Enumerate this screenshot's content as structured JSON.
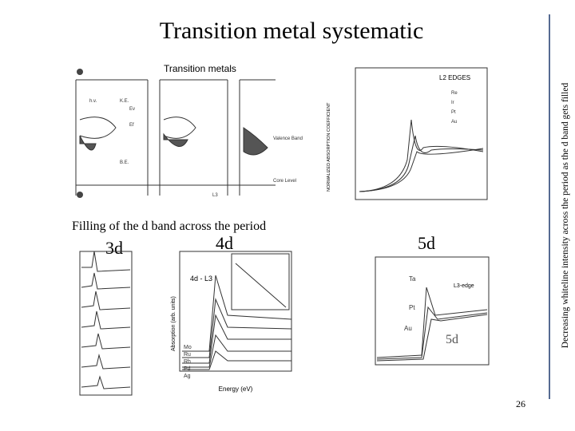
{
  "header": {
    "title": "Transition metal systematic"
  },
  "side_text": "Decreasing whiteline intensity across the period as the d band gets filled",
  "caption": "Filling of the d band across the period",
  "labels": [
    "3d",
    "4d",
    "5d"
  ],
  "figures": {
    "band_scheme": {
      "title": "Transition metals",
      "labels": [
        "h.v.",
        "K.E.",
        "Ev",
        "Ef",
        "B.E.",
        "Valence Band",
        "Core Level",
        "L3"
      ]
    },
    "l2_edges": {
      "title": "L2 EDGES",
      "legend": [
        "Re",
        "Ir",
        "Pt",
        "Au"
      ],
      "ylabel": "NORMALIZED ABSORPTION COEFFICIENT"
    },
    "spectra_4d": {
      "title": "4d - L3",
      "xlabel": "Energy (eV)",
      "ylabel": "Absorption (arb. units)",
      "elements": [
        "Mo",
        "Ru",
        "Rh",
        "Pd",
        "Ag"
      ]
    },
    "spectra_5d": {
      "title": "L3-edge",
      "elements": [
        "Ta",
        "Pt",
        "Au"
      ],
      "tag": "5d"
    }
  },
  "page_number": "26"
}
